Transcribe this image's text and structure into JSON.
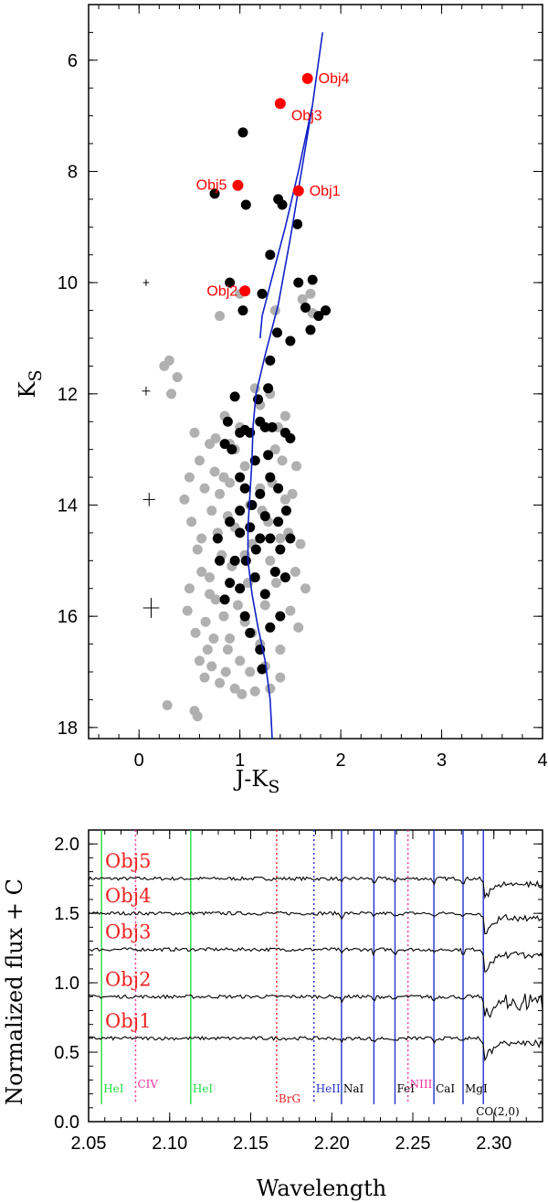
{
  "chart_data": [
    {
      "type": "scatter",
      "xlabel": "J-K",
      "xlabel_sub": "S",
      "ylabel": "K",
      "ylabel_sub": "S",
      "xlim": [
        -0.5,
        4
      ],
      "ylim": [
        18.2,
        5
      ],
      "xticks": [
        "0",
        "1",
        "2",
        "3",
        "4"
      ],
      "yticks": [
        "6",
        "8",
        "10",
        "12",
        "14",
        "16",
        "18"
      ],
      "colors": {
        "field": "#b0b0b0",
        "members": "#000000",
        "highlight": "#ff0000",
        "isochrone": "#1020c8"
      },
      "series": [
        {
          "points": [
            [
              0.3,
              11.4
            ],
            [
              0.25,
              11.5
            ],
            [
              0.32,
              12.0
            ],
            [
              0.38,
              11.7
            ],
            [
              0.55,
              12.7
            ],
            [
              0.6,
              13.2
            ],
            [
              0.5,
              13.5
            ],
            [
              0.45,
              13.9
            ],
            [
              0.52,
              14.3
            ],
            [
              0.58,
              14.8
            ],
            [
              0.62,
              15.2
            ],
            [
              0.5,
              15.5
            ],
            [
              0.48,
              15.9
            ],
            [
              0.56,
              16.3
            ],
            [
              0.6,
              16.8
            ],
            [
              0.65,
              17.1
            ],
            [
              0.28,
              17.6
            ],
            [
              0.55,
              17.7
            ],
            [
              0.58,
              17.8
            ],
            [
              0.7,
              12.9
            ],
            [
              0.75,
              13.4
            ],
            [
              0.8,
              13.8
            ],
            [
              0.72,
              14.1
            ],
            [
              0.78,
              14.5
            ],
            [
              0.82,
              14.9
            ],
            [
              0.7,
              15.3
            ],
            [
              0.76,
              15.7
            ],
            [
              0.84,
              16.0
            ],
            [
              0.9,
              16.4
            ],
            [
              0.68,
              16.6
            ],
            [
              0.72,
              16.9
            ],
            [
              0.8,
              17.2
            ],
            [
              0.88,
              16.6
            ],
            [
              0.92,
              15.1
            ],
            [
              0.95,
              14.4
            ],
            [
              0.9,
              13.6
            ],
            [
              0.95,
              13.0
            ],
            [
              1.0,
              12.6
            ],
            [
              1.05,
              13.3
            ],
            [
              1.1,
              14.0
            ],
            [
              1.12,
              14.7
            ],
            [
              1.08,
              15.4
            ],
            [
              1.05,
              16.1
            ],
            [
              1.0,
              16.8
            ],
            [
              1.1,
              17.0
            ],
            [
              1.2,
              16.5
            ],
            [
              1.25,
              15.8
            ],
            [
              1.3,
              15.0
            ],
            [
              1.28,
              14.3
            ],
            [
              1.32,
              13.6
            ],
            [
              1.35,
              13.0
            ],
            [
              1.38,
              12.6
            ],
            [
              1.42,
              13.2
            ],
            [
              1.45,
              13.9
            ],
            [
              1.4,
              14.6
            ],
            [
              1.36,
              15.4
            ],
            [
              1.3,
              16.2
            ],
            [
              1.25,
              16.9
            ],
            [
              1.3,
              17.3
            ],
            [
              1.4,
              16.6
            ],
            [
              1.5,
              15.9
            ],
            [
              1.55,
              15.2
            ],
            [
              1.48,
              14.5
            ],
            [
              1.52,
              13.8
            ],
            [
              1.56,
              13.3
            ],
            [
              1.2,
              12.2
            ],
            [
              1.15,
              11.9
            ],
            [
              1.3,
              12.0
            ],
            [
              1.45,
              12.4
            ],
            [
              1.7,
              10.2
            ],
            [
              1.72,
              10.55
            ],
            [
              1.62,
              10.3
            ],
            [
              0.8,
              10.6
            ],
            [
              1.0,
              10.2
            ],
            [
              1.35,
              10.5
            ],
            [
              0.9,
              12.9
            ],
            [
              0.85,
              12.4
            ],
            [
              0.65,
              13.7
            ],
            [
              0.62,
              14.6
            ],
            [
              0.7,
              15.6
            ],
            [
              0.66,
              16.1
            ],
            [
              0.74,
              16.4
            ],
            [
              0.86,
              17.0
            ],
            [
              0.95,
              17.3
            ],
            [
              1.02,
              17.4
            ],
            [
              1.15,
              17.35
            ],
            [
              0.98,
              15.8
            ],
            [
              1.12,
              16.3
            ],
            [
              1.2,
              13.7
            ],
            [
              1.22,
              14.1
            ],
            [
              1.05,
              14.9
            ],
            [
              0.88,
              14.2
            ],
            [
              0.84,
              13.5
            ],
            [
              0.76,
              12.8
            ],
            [
              1.6,
              14.7
            ],
            [
              1.58,
              16.2
            ],
            [
              1.4,
              17.1
            ],
            [
              1.65,
              15.5
            ]
          ]
        },
        {
          "points": [
            [
              1.03,
              7.3
            ],
            [
              0.75,
              8.4
            ],
            [
              1.06,
              8.6
            ],
            [
              1.38,
              8.5
            ],
            [
              1.42,
              8.6
            ],
            [
              1.57,
              8.95
            ],
            [
              1.3,
              9.5
            ],
            [
              1.72,
              9.95
            ],
            [
              1.58,
              10.0
            ],
            [
              0.9,
              10.0
            ],
            [
              1.03,
              10.5
            ],
            [
              1.22,
              10.2
            ],
            [
              1.65,
              10.45
            ],
            [
              1.78,
              10.6
            ],
            [
              1.85,
              10.5
            ],
            [
              1.7,
              10.85
            ],
            [
              1.37,
              10.9
            ],
            [
              1.5,
              11.05
            ],
            [
              1.3,
              11.4
            ],
            [
              1.28,
              11.9
            ],
            [
              0.95,
              12.05
            ],
            [
              0.88,
              12.5
            ],
            [
              0.85,
              12.9
            ],
            [
              0.92,
              13.0
            ],
            [
              1.0,
              12.7
            ],
            [
              1.05,
              12.65
            ],
            [
              1.1,
              12.7
            ],
            [
              1.2,
              12.5
            ],
            [
              1.25,
              12.6
            ],
            [
              1.32,
              12.6
            ],
            [
              1.45,
              12.7
            ],
            [
              1.5,
              12.8
            ],
            [
              1.0,
              13.5
            ],
            [
              1.05,
              13.7
            ],
            [
              1.12,
              14.0
            ],
            [
              1.2,
              13.8
            ],
            [
              1.3,
              13.5
            ],
            [
              1.38,
              13.7
            ],
            [
              1.46,
              14.1
            ],
            [
              1.5,
              14.6
            ],
            [
              1.4,
              14.8
            ],
            [
              1.3,
              14.6
            ],
            [
              1.2,
              14.6
            ],
            [
              1.1,
              14.4
            ],
            [
              1.0,
              14.5
            ],
            [
              0.95,
              15.0
            ],
            [
              0.9,
              15.4
            ],
            [
              0.85,
              15.7
            ],
            [
              1.0,
              15.5
            ],
            [
              1.15,
              15.3
            ],
            [
              1.25,
              15.6
            ],
            [
              1.35,
              15.2
            ],
            [
              1.45,
              15.3
            ],
            [
              1.05,
              16.0
            ],
            [
              1.1,
              16.3
            ],
            [
              1.2,
              16.6
            ],
            [
              1.3,
              16.2
            ],
            [
              0.8,
              15.0
            ],
            [
              0.78,
              14.6
            ],
            [
              1.28,
              13.1
            ],
            [
              1.15,
              13.2
            ],
            [
              1.0,
              14.1
            ],
            [
              1.38,
              14.3
            ],
            [
              0.9,
              14.3
            ],
            [
              1.25,
              14.2
            ],
            [
              1.4,
              16.0
            ],
            [
              1.22,
              16.95
            ],
            [
              1.18,
              12.1
            ],
            [
              1.06,
              15.0
            ],
            [
              1.16,
              14.8
            ]
          ]
        },
        {
          "points": [
            [
              1.58,
              8.35
            ],
            [
              1.05,
              10.15
            ],
            [
              1.4,
              6.78
            ],
            [
              1.67,
              6.33
            ],
            [
              0.98,
              8.25
            ]
          ],
          "labels": [
            "Obj1",
            "Obj2",
            "Obj3",
            "Obj4",
            "Obj5"
          ]
        },
        {
          "type": "line",
          "points": [
            [
              1.32,
              18.2
            ],
            [
              1.3,
              17.5
            ],
            [
              1.25,
              16.8
            ],
            [
              1.18,
              16.2
            ],
            [
              1.12,
              15.6
            ],
            [
              1.08,
              15.0
            ],
            [
              1.08,
              14.4
            ],
            [
              1.1,
              13.8
            ],
            [
              1.12,
              13.2
            ],
            [
              1.13,
              12.6
            ],
            [
              1.16,
              12.0
            ],
            [
              1.25,
              11.3
            ],
            [
              1.38,
              10.4
            ],
            [
              1.5,
              9.2
            ],
            [
              1.62,
              7.9
            ],
            [
              1.72,
              6.8
            ],
            [
              1.82,
              5.5
            ],
            [
              1.72,
              6.8
            ],
            [
              1.58,
              8.0
            ],
            [
              1.45,
              9.0
            ],
            [
              1.32,
              9.9
            ],
            [
              1.22,
              10.6
            ],
            [
              1.2,
              11.0
            ]
          ]
        }
      ]
    },
    {
      "type": "line",
      "xlabel": "Wavelength",
      "ylabel": "Normalized flux + C",
      "xlim": [
        2.05,
        2.33
      ],
      "ylim": [
        0.0,
        2.1
      ],
      "xticks": [
        "2.05",
        "2.10",
        "2.15",
        "2.20",
        "2.25",
        "2.30"
      ],
      "yticks": [
        "0.0",
        "0.5",
        "1.0",
        "1.5",
        "2.0"
      ],
      "series": [
        {
          "name": "Obj5",
          "offset": 1.75
        },
        {
          "name": "Obj4",
          "offset": 1.5
        },
        {
          "name": "Obj3",
          "offset": 1.24
        },
        {
          "name": "Obj2",
          "offset": 0.9
        },
        {
          "name": "Obj1",
          "offset": 0.6
        }
      ],
      "lines": [
        {
          "label": "HeI",
          "x": 2.058,
          "color": "#22dd44",
          "style": "solid"
        },
        {
          "label": "CIV",
          "x": 2.079,
          "color": "#ee3399",
          "style": "dotted"
        },
        {
          "label": "HeI",
          "x": 2.113,
          "color": "#22dd44",
          "style": "solid"
        },
        {
          "label": "BrG",
          "x": 2.166,
          "color": "#ee2222",
          "style": "dotted"
        },
        {
          "label": "HeII",
          "x": 2.189,
          "color": "#2233cc",
          "style": "dotted"
        },
        {
          "label": "NaI",
          "x": 2.206,
          "color": "#2233cc",
          "style": "solid"
        },
        {
          "label": "",
          "x": 2.226,
          "color": "#2233cc",
          "style": "solid"
        },
        {
          "label": "FeI",
          "x": 2.239,
          "color": "#2233cc",
          "style": "solid"
        },
        {
          "label": "NIII",
          "x": 2.247,
          "color": "#ee3399",
          "style": "dotted"
        },
        {
          "label": "CaI",
          "x": 2.263,
          "color": "#2233cc",
          "style": "solid"
        },
        {
          "label": "MgI",
          "x": 2.281,
          "color": "#2233cc",
          "style": "solid"
        },
        {
          "label": "CO(2,0)",
          "x": 2.2935,
          "color": "#2233cc",
          "style": "solid"
        }
      ]
    }
  ]
}
